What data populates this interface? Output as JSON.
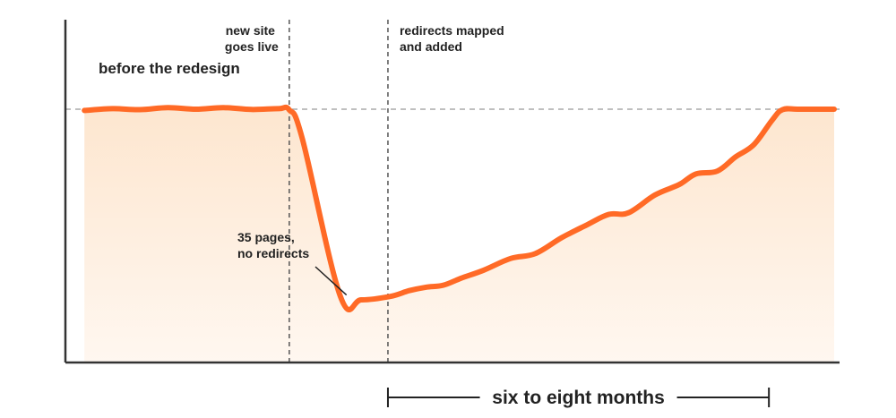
{
  "chart_data": {
    "type": "area",
    "x_range": [
      0,
      100
    ],
    "y_range": [
      0,
      100
    ],
    "series": [
      {
        "color": "#ff6a26",
        "fill_color": "#fde9d6",
        "points": [
          [
            1.2,
            96.1
          ],
          [
            4.9,
            96.8
          ],
          [
            8.5,
            96.4
          ],
          [
            12.2,
            97.2
          ],
          [
            15.9,
            96.6
          ],
          [
            19.5,
            97.2
          ],
          [
            23.2,
            96.5
          ],
          [
            26.8,
            96.8
          ],
          [
            28.2,
            96.3
          ],
          [
            29.9,
            85.5
          ],
          [
            34.9,
            25.5
          ],
          [
            37.7,
            23.9
          ],
          [
            41.5,
            25.2
          ],
          [
            44.0,
            27.4
          ],
          [
            46.2,
            28.7
          ],
          [
            48.5,
            29.5
          ],
          [
            50.8,
            32.1
          ],
          [
            53.8,
            35.2
          ],
          [
            57.4,
            39.7
          ],
          [
            60.6,
            41.5
          ],
          [
            64.1,
            47.6
          ],
          [
            67.5,
            52.6
          ],
          [
            70.3,
            56.5
          ],
          [
            72.9,
            57.1
          ],
          [
            76.4,
            63.9
          ],
          [
            79.6,
            67.9
          ],
          [
            81.8,
            71.9
          ],
          [
            84.6,
            73.0
          ],
          [
            87.0,
            78.4
          ],
          [
            89.4,
            83.0
          ],
          [
            91.8,
            92.3
          ],
          [
            93.2,
            96.4
          ],
          [
            95.4,
            96.6
          ],
          [
            100.0,
            96.6
          ]
        ]
      }
    ],
    "reference_line": {
      "y": 96.6,
      "color": "#aaaaaa"
    },
    "event_lines": [
      {
        "x": 28.2,
        "label_lines": [
          "new site",
          "goes live"
        ]
      },
      {
        "x": 41.2,
        "label_lines": [
          "redirects mapped",
          "and added"
        ]
      }
    ],
    "annotations": {
      "before": "before the redesign",
      "callout_lines": [
        "35 pages,",
        "no redirects"
      ],
      "callout_target": [
        35.5,
        25.4
      ]
    },
    "duration": {
      "from_x": 41.2,
      "to_x": 91.4,
      "label": "six to eight months"
    },
    "grid": false,
    "legend": "none",
    "colors": {
      "axis": "#333333",
      "event_line": "#555555",
      "text": "#222222"
    }
  }
}
